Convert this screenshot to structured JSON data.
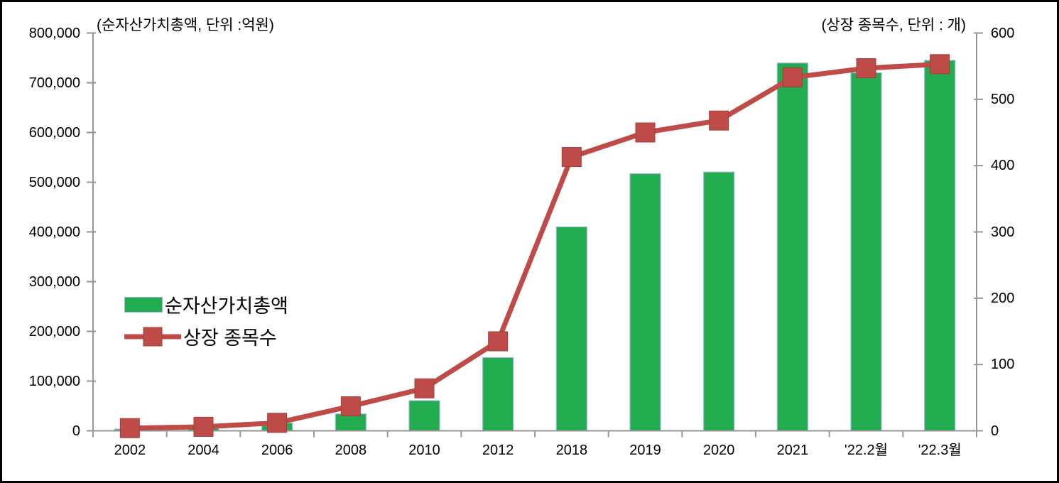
{
  "chart_data": {
    "type": "bar+line combo",
    "title": "",
    "categories": [
      "2002",
      "2004",
      "2006",
      "2008",
      "2010",
      "2012",
      "2018",
      "2019",
      "2020",
      "2021",
      "'22.2월",
      "'22.3월"
    ],
    "series": [
      {
        "name": "순자산가치총액",
        "type": "bar",
        "axis": "left",
        "values": [
          3400,
          5200,
          15600,
          34000,
          60600,
          147200,
          410100,
          517100,
          520400,
          739700,
          720000,
          745000
        ],
        "color": "#22AC50",
        "border_color": "#9CB6D5"
      },
      {
        "name": "상장 종목수",
        "type": "line",
        "axis": "right",
        "values": [
          4,
          6,
          12,
          37,
          64,
          135,
          413,
          450,
          468,
          533,
          547,
          553
        ],
        "color": "#BE4B48",
        "marker": "square"
      }
    ],
    "left_axis": {
      "title": "(순자산가치총액, 단위 :억원)",
      "min": 0,
      "max": 800000,
      "tick_values": [
        0,
        100000,
        200000,
        300000,
        400000,
        500000,
        600000,
        700000,
        800000
      ],
      "tick_labels": [
        "0",
        "100,000",
        "200,000",
        "300,000",
        "400,000",
        "500,000",
        "600,000",
        "700,000",
        "800,000"
      ]
    },
    "right_axis": {
      "title": "(상장 종목수, 단위 : 개)",
      "min": 0,
      "max": 600,
      "tick_values": [
        0,
        100,
        200,
        300,
        400,
        500,
        600
      ],
      "tick_labels": [
        "0",
        "100",
        "200",
        "300",
        "400",
        "500",
        "600"
      ]
    },
    "legend_position": "center-left",
    "grid": false,
    "axis_color": "#969696",
    "background": "#FFFFFF",
    "border_color": "#000000"
  }
}
